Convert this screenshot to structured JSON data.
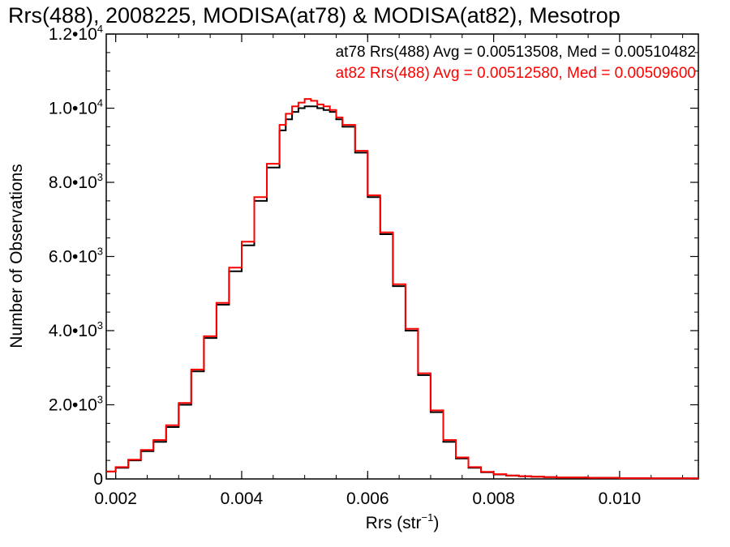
{
  "chart_data": {
    "type": "line",
    "title": "Rrs(488), 2008225, MODISA(at78) & MODISA(at82), Mesotrop",
    "xlabel_main": "Rrs (str",
    "xlabel_sup": "−1",
    "xlabel_end": ")",
    "ylabel": "Number of Observations",
    "xlim": [
      0.00185,
      0.01125
    ],
    "ylim": [
      0,
      12000
    ],
    "x_ticks": [
      {
        "value": 0.002,
        "label": "0.002"
      },
      {
        "value": 0.004,
        "label": "0.004"
      },
      {
        "value": 0.006,
        "label": "0.006"
      },
      {
        "value": 0.008,
        "label": "0.008"
      },
      {
        "value": 0.01,
        "label": "0.010"
      }
    ],
    "y_ticks": [
      {
        "value": 0,
        "mant": "0",
        "exp": ""
      },
      {
        "value": 2000,
        "mant": "2.0•10",
        "exp": "3"
      },
      {
        "value": 4000,
        "mant": "4.0•10",
        "exp": "3"
      },
      {
        "value": 6000,
        "mant": "6.0•10",
        "exp": "3"
      },
      {
        "value": 8000,
        "mant": "8.0•10",
        "exp": "3"
      },
      {
        "value": 10000,
        "mant": "1.0•10",
        "exp": "4"
      },
      {
        "value": 12000,
        "mant": "1.2•10",
        "exp": "4"
      }
    ],
    "series": [
      {
        "name": "at78",
        "label": "at78 Rrs(488) Avg = 0.00513508, Med = 0.00510482",
        "color": "#000000",
        "x": [
          0.00185,
          0.002,
          0.0022,
          0.0024,
          0.0026,
          0.0028,
          0.003,
          0.0032,
          0.0034,
          0.0036,
          0.0038,
          0.004,
          0.0042,
          0.0044,
          0.0046,
          0.0047,
          0.0048,
          0.0049,
          0.005,
          0.0051,
          0.0052,
          0.0053,
          0.0054,
          0.0055,
          0.0056,
          0.0058,
          0.006,
          0.0062,
          0.0064,
          0.0066,
          0.0068,
          0.007,
          0.0072,
          0.0074,
          0.0076,
          0.0078,
          0.008,
          0.0082,
          0.0084,
          0.0086,
          0.0088,
          0.009,
          0.0095,
          0.01,
          0.0105,
          0.01125
        ],
        "y": [
          200,
          300,
          500,
          750,
          1000,
          1400,
          2000,
          2900,
          3800,
          4700,
          5600,
          6300,
          7500,
          8400,
          9400,
          9700,
          9900,
          10000,
          10050,
          10050,
          10000,
          9950,
          9900,
          9700,
          9500,
          8800,
          7600,
          6600,
          5200,
          4000,
          2800,
          1800,
          1000,
          550,
          300,
          180,
          120,
          90,
          70,
          60,
          50,
          40,
          30,
          20,
          15,
          10
        ]
      },
      {
        "name": "at82",
        "label": "at82 Rrs(488) Avg = 0.00512580, Med = 0.00509600",
        "color": "#ff0000",
        "x": [
          0.00185,
          0.002,
          0.0022,
          0.0024,
          0.0026,
          0.0028,
          0.003,
          0.0032,
          0.0034,
          0.0036,
          0.0038,
          0.004,
          0.0042,
          0.0044,
          0.0046,
          0.0047,
          0.0048,
          0.0049,
          0.005,
          0.0051,
          0.0052,
          0.0053,
          0.0054,
          0.0055,
          0.0056,
          0.0058,
          0.006,
          0.0062,
          0.0064,
          0.0066,
          0.0068,
          0.007,
          0.0072,
          0.0074,
          0.0076,
          0.0078,
          0.008,
          0.0082,
          0.0084,
          0.0086,
          0.0088,
          0.009,
          0.0095,
          0.01,
          0.0105,
          0.01125
        ],
        "y": [
          200,
          320,
          520,
          780,
          1050,
          1450,
          2050,
          2950,
          3850,
          4750,
          5700,
          6400,
          7600,
          8500,
          9550,
          9850,
          10050,
          10150,
          10250,
          10200,
          10100,
          10050,
          9950,
          9750,
          9550,
          8850,
          7650,
          6650,
          5250,
          4050,
          2850,
          1850,
          1050,
          580,
          320,
          190,
          130,
          95,
          75,
          60,
          50,
          40,
          30,
          20,
          15,
          10
        ]
      }
    ],
    "legend_position": "top-right"
  }
}
